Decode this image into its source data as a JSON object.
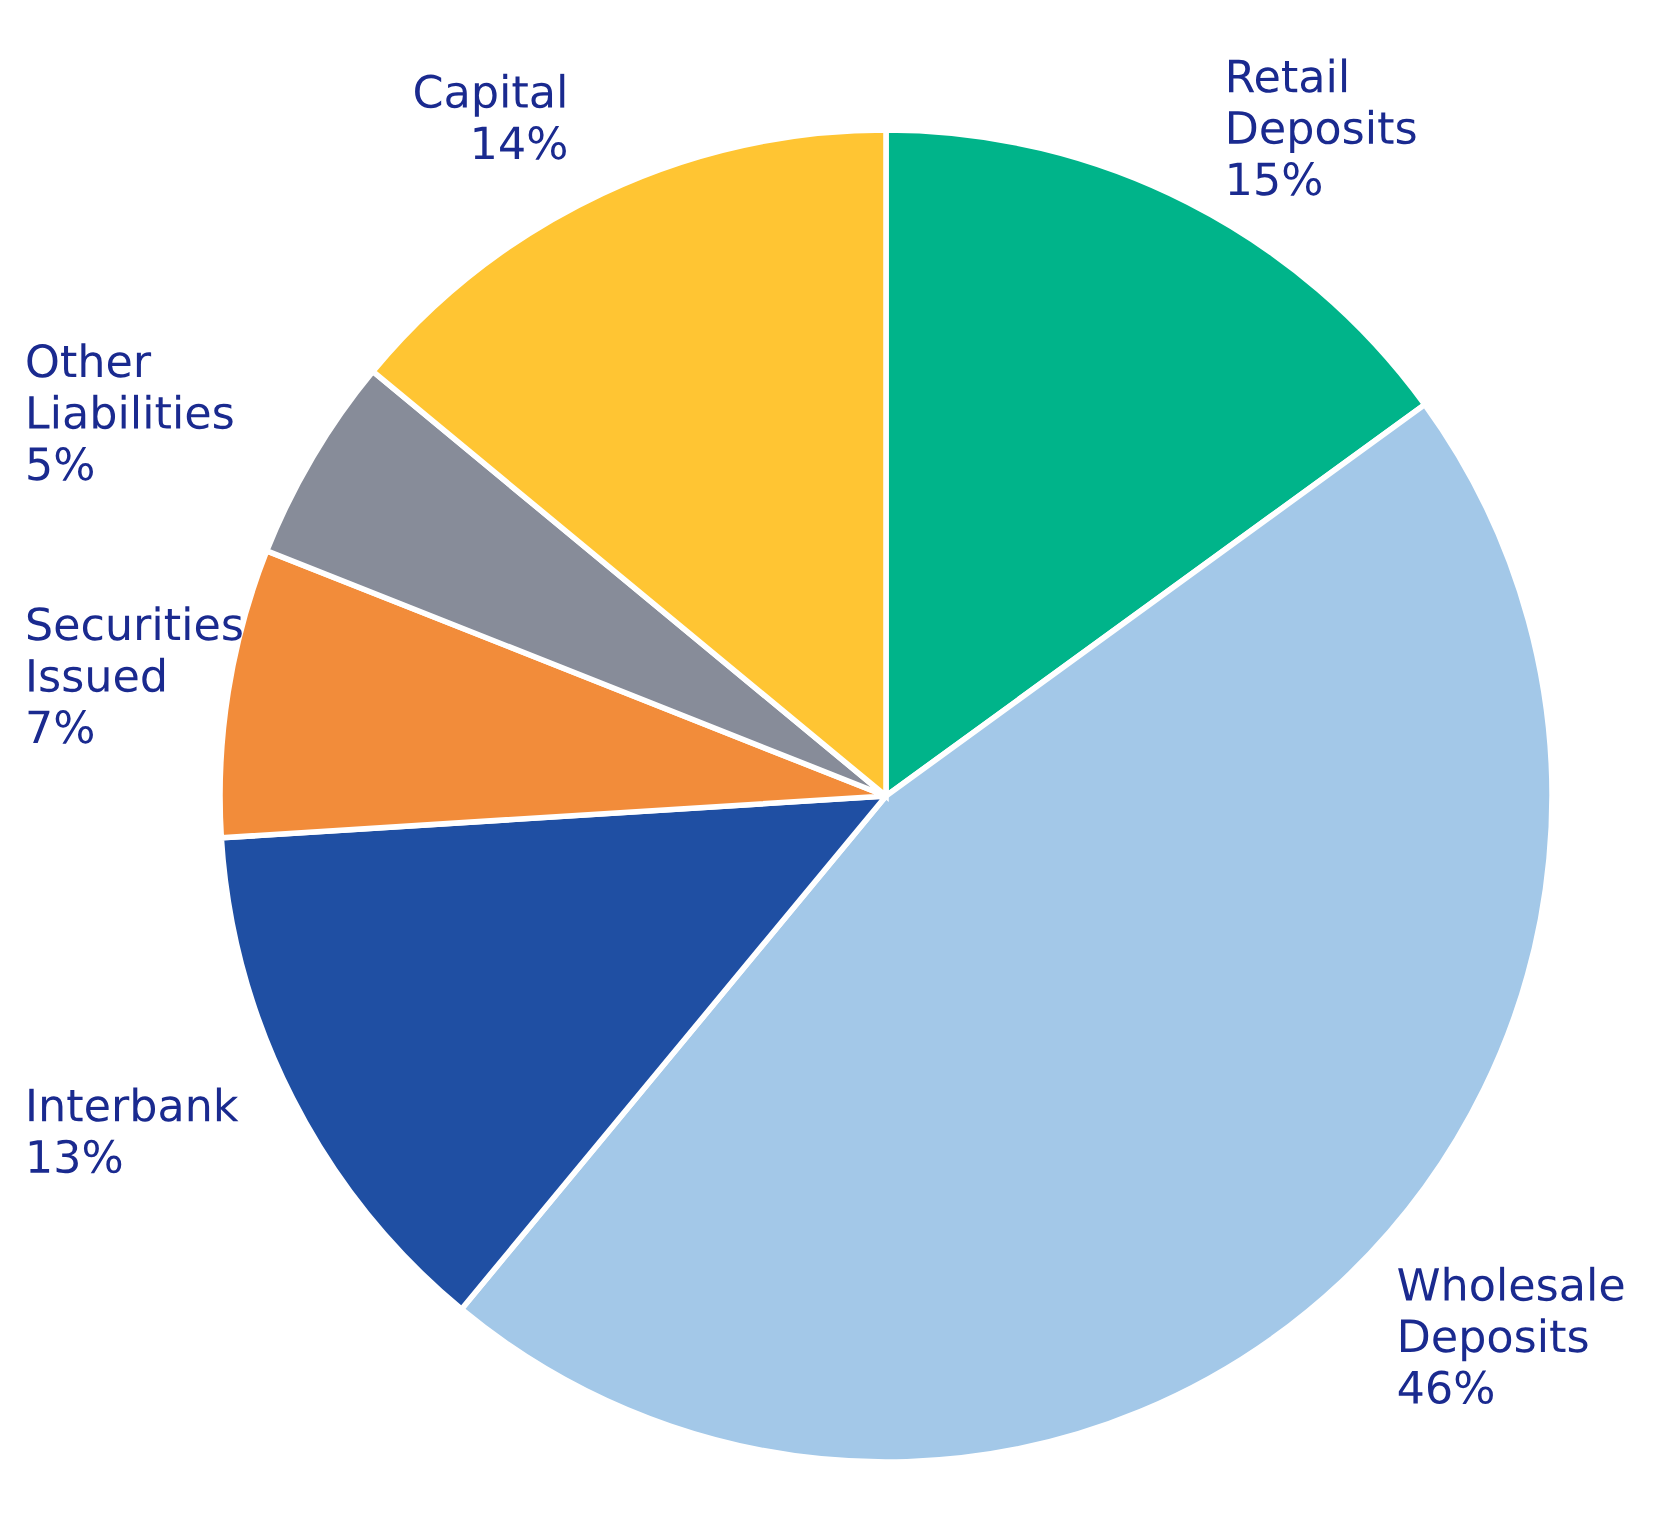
{
  "chart_data": {
    "type": "pie",
    "categories": [
      "Retail Deposits",
      "Wholesale Deposits",
      "Interbank",
      "Securities Issued",
      "Other Liabilities",
      "Capital"
    ],
    "values": [
      15,
      46,
      13,
      7,
      5,
      14
    ],
    "value_labels": [
      "15%",
      "46%",
      "13%",
      "7%",
      "5%",
      "14%"
    ],
    "colors": [
      "#00b48a",
      "#a3c8e8",
      "#1f4fa3",
      "#f28c3a",
      "#878c99",
      "#ffc533"
    ],
    "legend": false
  }
}
